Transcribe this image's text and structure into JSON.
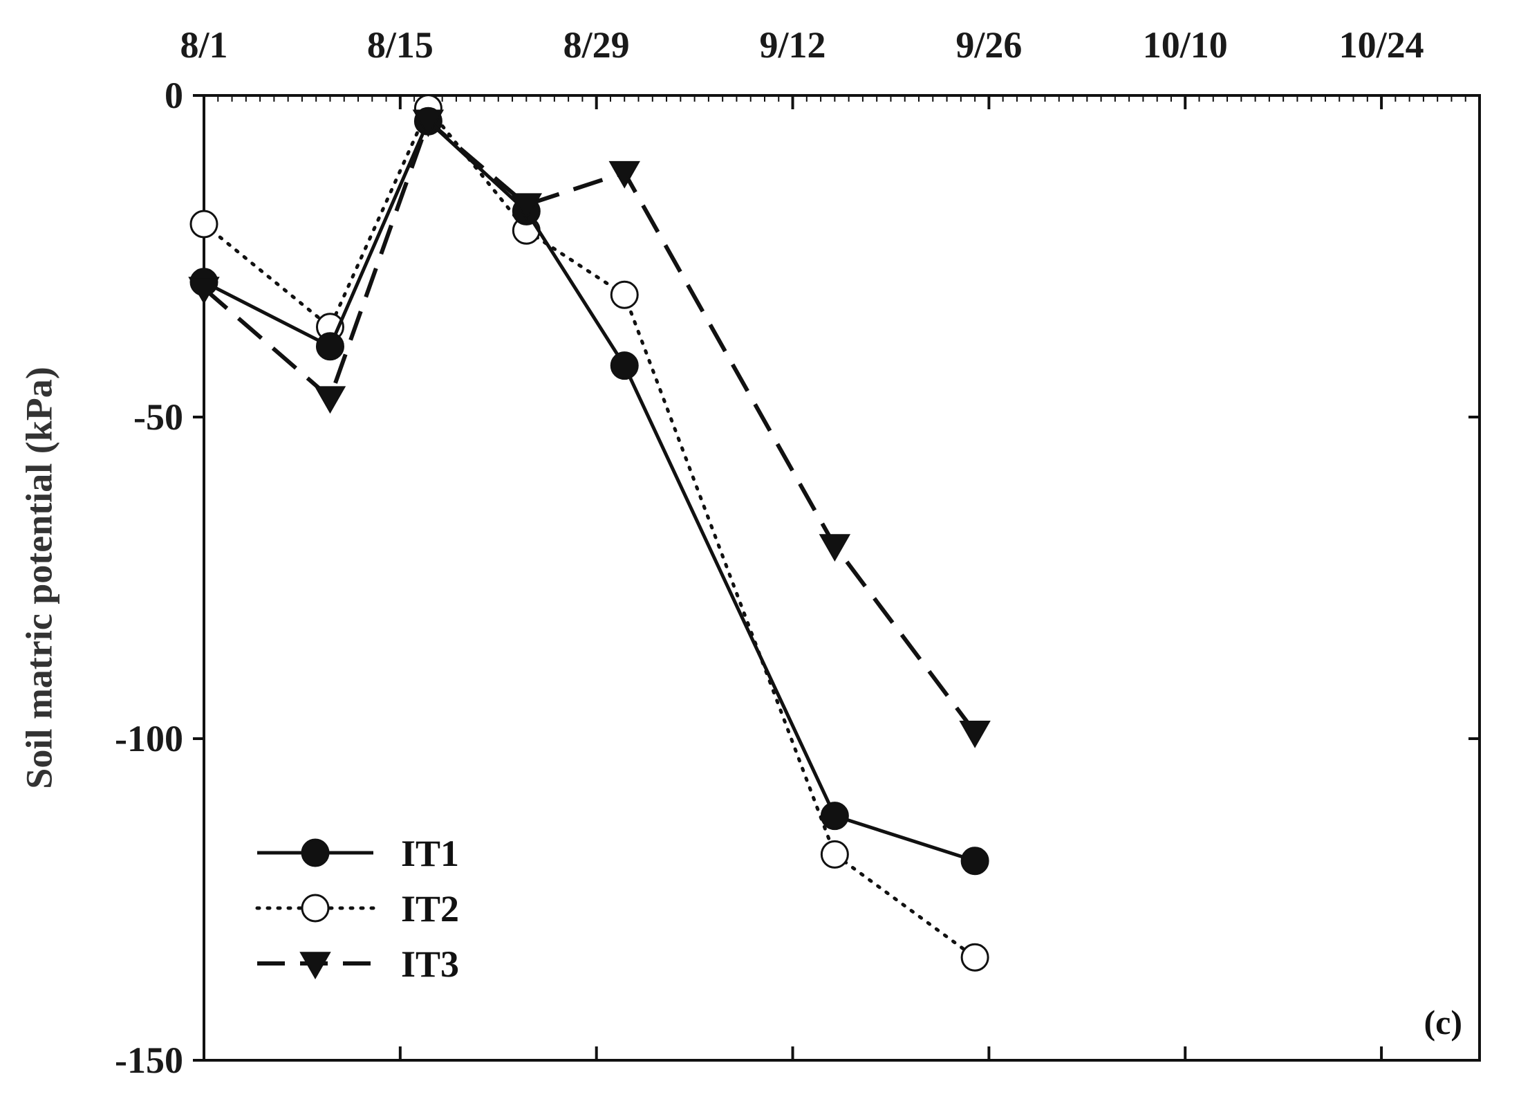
{
  "chart_data": {
    "type": "line",
    "title": "",
    "xlabel": "",
    "ylabel": "Soil matric potential (kPa)",
    "panel_label": "(c)",
    "x_axis_position": "top",
    "x_tick_labels": [
      "8/1",
      "8/15",
      "8/29",
      "9/12",
      "9/26",
      "10/10",
      "10/24"
    ],
    "xlim": [
      "2019-08-01",
      "2019-10-31"
    ],
    "ylim": [
      -150,
      0
    ],
    "y_ticks": [
      0,
      -50,
      -100,
      -150
    ],
    "y_tick_labels": [
      "0",
      "-50",
      "-100",
      "-150"
    ],
    "grid": false,
    "legend": {
      "placement": "bottom-left"
    },
    "series": [
      {
        "name": "IT1",
        "style": "solid",
        "marker": "filled-circle",
        "x": [
          "2019-08-01",
          "2019-08-10",
          "2019-08-17",
          "2019-08-24",
          "2019-08-31",
          "2019-09-15",
          "2019-09-25"
        ],
        "y": [
          -29,
          -39,
          -4,
          -18,
          -42,
          -112,
          -119
        ]
      },
      {
        "name": "IT2",
        "style": "dotted",
        "marker": "open-circle",
        "x": [
          "2019-08-01",
          "2019-08-10",
          "2019-08-17",
          "2019-08-24",
          "2019-08-31",
          "2019-09-15",
          "2019-09-25"
        ],
        "y": [
          -20,
          -36,
          -2,
          -21,
          -31,
          -118,
          -134
        ]
      },
      {
        "name": "IT3",
        "style": "dashed",
        "marker": "filled-triangle-down",
        "x": [
          "2019-08-01",
          "2019-08-10",
          "2019-08-17",
          "2019-08-24",
          "2019-08-31",
          "2019-09-15",
          "2019-09-25"
        ],
        "y": [
          -30,
          -47,
          -4,
          -17,
          -12,
          -70,
          -99
        ]
      }
    ]
  }
}
